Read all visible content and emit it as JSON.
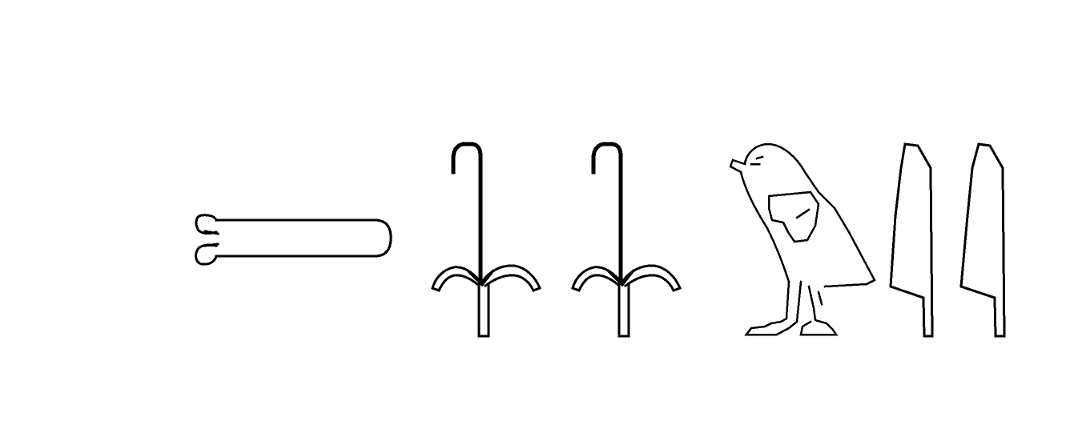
{
  "colors": {
    "background": "#ffffff",
    "ink": "#000000"
  },
  "glyphs": [
    {
      "id": "penis-glyph",
      "icon": "phallus-hieroglyph"
    },
    {
      "id": "crook-glyph-1",
      "icon": "flowering-reed-crook-hieroglyph"
    },
    {
      "id": "crook-glyph-2",
      "icon": "flowering-reed-crook-hieroglyph"
    },
    {
      "id": "falcon-glyph",
      "icon": "falcon-hieroglyph"
    },
    {
      "id": "reed-leaf-glyph-1",
      "icon": "reed-leaf-hieroglyph"
    },
    {
      "id": "reed-leaf-glyph-2",
      "icon": "reed-leaf-hieroglyph"
    }
  ]
}
